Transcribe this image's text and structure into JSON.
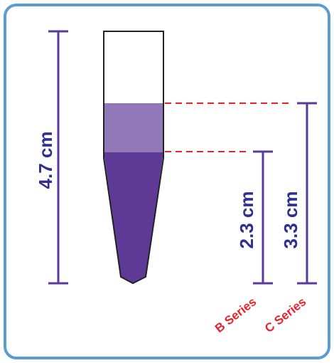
{
  "colors": {
    "frame_border": "#5b9bd5",
    "frame_fill": "#ffffff",
    "dimension": "#5a3a9a",
    "dimension_text": "#2e2f8f",
    "guide_dash": "#e8212b",
    "series_text": "#e8212b",
    "tube_outline": "#222222",
    "tube_empty": "#ffffff",
    "tube_light_fill": "#9278b8",
    "tube_dark_fill": "#5e3a96"
  },
  "measurements": {
    "total": {
      "label": "4.7 cm",
      "value_cm": 4.7
    },
    "b_series": {
      "label": "2.3 cm",
      "value_cm": 2.3
    },
    "c_series": {
      "label": "3.3 cm",
      "value_cm": 3.3
    }
  },
  "series_labels": {
    "b": "B Series",
    "c": "C Series"
  }
}
